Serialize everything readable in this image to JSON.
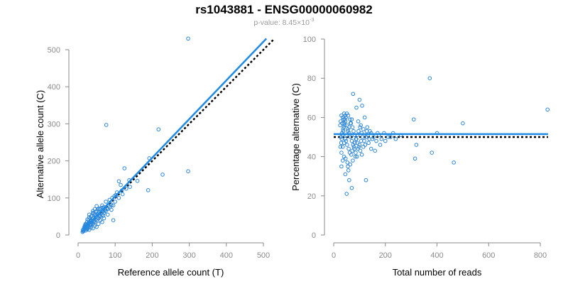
{
  "title": "rs1043881 - ENSG00000060982",
  "subtitle": {
    "prefix": "p-value: 8.45×10",
    "exponent": "-3"
  },
  "colors": {
    "points": "#2e86d6",
    "fit_line": "#1f8ae6",
    "reference_line": "#000000",
    "axis": "#8a8a8a"
  },
  "chart_data": [
    {
      "type": "scatter",
      "xlabel": "Reference allele count (T)",
      "ylabel": "Alternative allele count (C)",
      "xlim": [
        0,
        500
      ],
      "ylim": [
        0,
        500
      ],
      "xticks": [
        0,
        100,
        200,
        300,
        400,
        500
      ],
      "yticks": [
        0,
        100,
        200,
        300,
        400,
        500
      ],
      "grid": false,
      "fit_line": [
        [
          10,
          10
        ],
        [
          508,
          530
        ]
      ],
      "reference_line": [
        [
          10,
          10
        ],
        [
          530,
          530
        ]
      ],
      "points": [
        [
          297,
          530
        ],
        [
          76,
          297
        ],
        [
          217,
          285
        ],
        [
          297,
          172
        ],
        [
          192,
          207
        ],
        [
          228,
          163
        ],
        [
          189,
          121
        ],
        [
          125,
          180
        ],
        [
          110,
          145
        ],
        [
          138,
          148
        ],
        [
          160,
          146
        ],
        [
          95,
          80
        ],
        [
          90,
          68
        ],
        [
          68,
          52
        ],
        [
          95,
          40
        ],
        [
          50,
          78
        ],
        [
          55,
          60
        ],
        [
          45,
          55
        ],
        [
          40,
          45
        ],
        [
          35,
          40
        ],
        [
          30,
          35
        ],
        [
          28,
          30
        ],
        [
          25,
          28
        ],
        [
          22,
          24
        ],
        [
          20,
          20
        ],
        [
          18,
          18
        ],
        [
          16,
          15
        ],
        [
          15,
          12
        ],
        [
          14,
          10
        ],
        [
          12,
          8
        ],
        [
          20,
          12
        ],
        [
          25,
          18
        ],
        [
          30,
          22
        ],
        [
          35,
          28
        ],
        [
          40,
          30
        ],
        [
          45,
          35
        ],
        [
          50,
          40
        ],
        [
          55,
          45
        ],
        [
          60,
          50
        ],
        [
          65,
          55
        ],
        [
          70,
          60
        ],
        [
          75,
          65
        ],
        [
          80,
          70
        ],
        [
          85,
          75
        ],
        [
          90,
          80
        ],
        [
          100,
          90
        ],
        [
          110,
          100
        ],
        [
          120,
          110
        ],
        [
          60,
          70
        ],
        [
          70,
          75
        ],
        [
          55,
          70
        ],
        [
          48,
          62
        ],
        [
          42,
          58
        ],
        [
          38,
          52
        ],
        [
          33,
          45
        ],
        [
          28,
          40
        ],
        [
          24,
          35
        ],
        [
          20,
          30
        ],
        [
          18,
          25
        ],
        [
          30,
          55
        ],
        [
          40,
          65
        ],
        [
          45,
          70
        ],
        [
          65,
          80
        ],
        [
          75,
          90
        ],
        [
          85,
          95
        ],
        [
          105,
          115
        ],
        [
          115,
          135
        ],
        [
          130,
          125
        ],
        [
          140,
          130
        ],
        [
          25,
          15
        ],
        [
          35,
          20
        ],
        [
          45,
          25
        ],
        [
          55,
          30
        ],
        [
          65,
          35
        ],
        [
          40,
          18
        ],
        [
          50,
          22
        ],
        [
          30,
          14
        ],
        [
          22,
          16
        ],
        [
          26,
          20
        ],
        [
          32,
          26
        ],
        [
          38,
          34
        ],
        [
          44,
          40
        ],
        [
          52,
          48
        ],
        [
          58,
          54
        ],
        [
          62,
          58
        ],
        [
          72,
          66
        ],
        [
          78,
          72
        ],
        [
          82,
          78
        ],
        [
          88,
          84
        ],
        [
          18,
          22
        ],
        [
          24,
          26
        ],
        [
          28,
          32
        ],
        [
          34,
          38
        ],
        [
          48,
          50
        ],
        [
          53,
          56
        ],
        [
          16,
          20
        ],
        [
          19,
          24
        ],
        [
          21,
          28
        ],
        [
          13,
          14
        ],
        [
          17,
          16
        ],
        [
          23,
          20
        ],
        [
          27,
          24
        ],
        [
          31,
          28
        ],
        [
          36,
          33
        ],
        [
          42,
          36
        ],
        [
          47,
          42
        ],
        [
          57,
          50
        ],
        [
          63,
          60
        ],
        [
          68,
          64
        ],
        [
          73,
          70
        ],
        [
          60,
          40
        ],
        [
          70,
          45
        ],
        [
          80,
          55
        ],
        [
          25,
          42
        ],
        [
          30,
          48
        ],
        [
          35,
          50
        ],
        [
          40,
          60
        ],
        [
          50,
          65
        ],
        [
          58,
          72
        ],
        [
          66,
          74
        ],
        [
          92,
          100
        ],
        [
          98,
          105
        ],
        [
          102,
          108
        ],
        [
          118,
          120
        ]
      ]
    },
    {
      "type": "scatter",
      "xlabel": "Total number of reads",
      "ylabel": "Percentage alternative (C)",
      "xlim": [
        0,
        800
      ],
      "ylim": [
        0,
        100
      ],
      "xticks": [
        0,
        200,
        400,
        600,
        800
      ],
      "yticks": [
        0,
        20,
        40,
        60,
        80,
        100
      ],
      "grid": false,
      "fit_line": [
        [
          0,
          51.5
        ],
        [
          830,
          51.5
        ]
      ],
      "reference_line": [
        [
          0,
          50
        ],
        [
          830,
          50
        ]
      ],
      "points": [
        [
          372,
          80
        ],
        [
          828,
          64
        ],
        [
          500,
          57
        ],
        [
          310,
          59
        ],
        [
          400,
          52
        ],
        [
          320,
          46
        ],
        [
          380,
          42
        ],
        [
          465,
          37
        ],
        [
          315,
          39
        ],
        [
          260,
          51
        ],
        [
          240,
          49
        ],
        [
          220,
          50
        ],
        [
          200,
          48
        ],
        [
          180,
          46
        ],
        [
          170,
          52
        ],
        [
          150,
          49
        ],
        [
          140,
          53
        ],
        [
          130,
          55
        ],
        [
          120,
          60
        ],
        [
          110,
          66
        ],
        [
          100,
          69
        ],
        [
          75,
          72
        ],
        [
          88,
          65
        ],
        [
          95,
          58
        ],
        [
          105,
          56
        ],
        [
          115,
          54
        ],
        [
          125,
          50
        ],
        [
          135,
          47
        ],
        [
          145,
          44
        ],
        [
          160,
          43
        ],
        [
          125,
          28
        ],
        [
          70,
          24
        ],
        [
          50,
          21
        ],
        [
          60,
          28
        ],
        [
          45,
          31
        ],
        [
          55,
          35
        ],
        [
          30,
          35
        ],
        [
          35,
          38
        ],
        [
          40,
          40
        ],
        [
          30,
          42
        ],
        [
          35,
          45
        ],
        [
          40,
          47
        ],
        [
          45,
          49
        ],
        [
          50,
          51
        ],
        [
          55,
          53
        ],
        [
          60,
          55
        ],
        [
          65,
          57
        ],
        [
          70,
          59
        ],
        [
          30,
          61
        ],
        [
          35,
          60
        ],
        [
          40,
          62
        ],
        [
          45,
          58
        ],
        [
          50,
          56
        ],
        [
          55,
          54
        ],
        [
          60,
          52
        ],
        [
          65,
          50
        ],
        [
          70,
          48
        ],
        [
          75,
          46
        ],
        [
          80,
          44
        ],
        [
          85,
          42
        ],
        [
          90,
          40
        ],
        [
          28,
          50
        ],
        [
          32,
          52
        ],
        [
          36,
          54
        ],
        [
          42,
          56
        ],
        [
          48,
          48
        ],
        [
          52,
          46
        ],
        [
          58,
          44
        ],
        [
          62,
          42
        ],
        [
          68,
          41
        ],
        [
          72,
          43
        ],
        [
          78,
          45
        ],
        [
          82,
          47
        ],
        [
          88,
          49
        ],
        [
          92,
          51
        ],
        [
          96,
          53
        ],
        [
          102,
          55
        ],
        [
          108,
          52
        ],
        [
          112,
          50
        ],
        [
          118,
          48
        ],
        [
          122,
          46
        ],
        [
          128,
          53
        ],
        [
          132,
          51
        ],
        [
          138,
          49
        ],
        [
          25,
          56
        ],
        [
          27,
          58
        ],
        [
          33,
          57
        ],
        [
          38,
          59
        ],
        [
          44,
          61
        ],
        [
          46,
          39
        ],
        [
          53,
          37
        ],
        [
          57,
          33
        ],
        [
          64,
          36
        ],
        [
          74,
          38
        ],
        [
          84,
          40
        ],
        [
          94,
          44
        ],
        [
          100,
          46
        ],
        [
          106,
          48
        ],
        [
          26,
          45
        ],
        [
          29,
          47
        ],
        [
          31,
          49
        ],
        [
          34,
          51
        ],
        [
          37,
          53
        ],
        [
          39,
          55
        ],
        [
          41,
          57
        ],
        [
          43,
          59
        ],
        [
          47,
          60
        ],
        [
          51,
          62
        ],
        [
          56,
          61
        ],
        [
          63,
          59
        ],
        [
          67,
          57
        ],
        [
          73,
          55
        ],
        [
          77,
          53
        ],
        [
          81,
          51
        ],
        [
          86,
          49
        ],
        [
          91,
          47
        ],
        [
          97,
          45
        ],
        [
          103,
          43
        ],
        [
          109,
          41
        ],
        [
          115,
          45
        ],
        [
          145,
          52
        ],
        [
          155,
          50
        ],
        [
          165,
          48
        ],
        [
          175,
          51
        ],
        [
          185,
          49
        ],
        [
          195,
          52
        ],
        [
          210,
          50
        ],
        [
          230,
          52
        ]
      ]
    }
  ]
}
